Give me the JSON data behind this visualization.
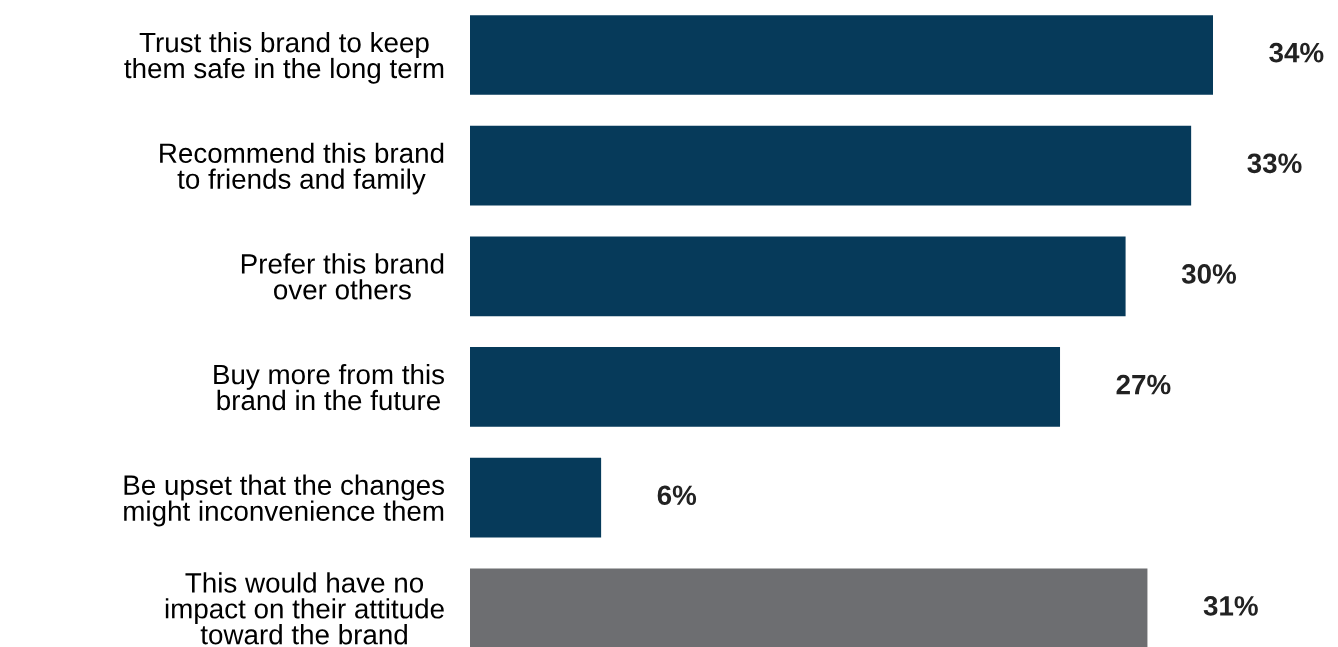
{
  "chart_data": {
    "type": "bar",
    "orientation": "horizontal",
    "categories": [
      "Trust this brand to keep\nthem safe in the long term",
      "Recommend this brand\nto friends and family",
      "Prefer this brand\nover others",
      "Buy more from this\nbrand in the future",
      "Be upset that the changes\nmight inconvenience them",
      "This would have no\nimpact on their attitude\ntoward the brand"
    ],
    "values": [
      34,
      33,
      30,
      27,
      6,
      31
    ],
    "colors": [
      "#063a5a",
      "#063a5a",
      "#063a5a",
      "#063a5a",
      "#063a5a",
      "#6d6e71"
    ],
    "value_labels": [
      "34%",
      "33%",
      "30%",
      "27%",
      "6%",
      "31%"
    ]
  }
}
